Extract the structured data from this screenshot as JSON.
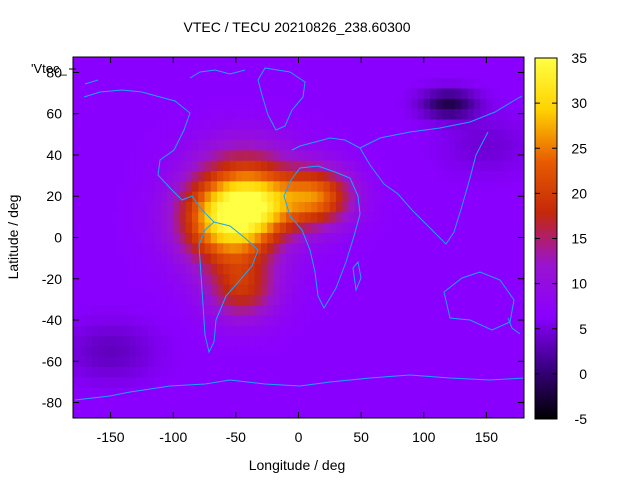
{
  "chart_data": {
    "type": "heatmap",
    "title": "VTEC / TECU 20210826_238.60300",
    "xlabel": "Longitude / deg",
    "ylabel": "Latitude / deg",
    "key_label": "'Vtec_",
    "xlim": [
      -180,
      180
    ],
    "ylim": [
      -87.5,
      87.5
    ],
    "xticks": [
      -150,
      -100,
      -50,
      0,
      50,
      100,
      150
    ],
    "yticks": [
      -80,
      -60,
      -40,
      -20,
      0,
      20,
      40,
      60,
      80
    ],
    "colorbar": {
      "min": -5,
      "max": 35,
      "ticks": [
        35,
        30,
        25,
        20,
        15,
        10,
        5,
        0,
        -5
      ]
    },
    "colormap_stops": [
      "#000000",
      "#3a0082",
      "#8a00ff",
      "#9a14cf",
      "#c4280a",
      "#e85d00",
      "#ffd200",
      "#ffff44"
    ],
    "grid_step_deg": 5,
    "background_vtec": 6.5,
    "features": [
      {
        "kind": "peak",
        "lon": -55,
        "lat": 10,
        "value": 27,
        "sigma_lon": 38,
        "sigma_lat": 22
      },
      {
        "kind": "peak",
        "lon": -28,
        "lat": 18,
        "value": 12,
        "sigma_lon": 30,
        "sigma_lat": 16
      },
      {
        "kind": "peak",
        "lon": 15,
        "lat": 20,
        "value": 17,
        "sigma_lon": 28,
        "sigma_lat": 14
      },
      {
        "kind": "peak",
        "lon": -45,
        "lat": -25,
        "value": 11,
        "sigma_lon": 28,
        "sigma_lat": 15
      },
      {
        "kind": "peak",
        "lon": -40,
        "lat": 40,
        "value": 4,
        "sigma_lon": 40,
        "sigma_lat": 14
      },
      {
        "kind": "trough",
        "lon": 120,
        "lat": 65,
        "value": -8,
        "sigma_lon": 22,
        "sigma_lat": 7
      },
      {
        "kind": "trough",
        "lon": -150,
        "lat": -55,
        "value": -3,
        "sigma_lon": 35,
        "sigma_lat": 14
      },
      {
        "kind": "trough",
        "lon": 150,
        "lat": 45,
        "value": -2,
        "sigma_lon": 35,
        "sigma_lat": 14
      }
    ],
    "coastline_color": "#1aa4ff",
    "grid": false,
    "legend_placement": "top-left"
  }
}
